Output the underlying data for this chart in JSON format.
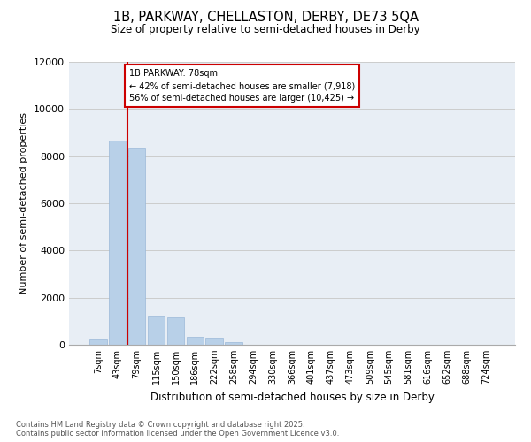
{
  "title_line1": "1B, PARKWAY, CHELLASTON, DERBY, DE73 5QA",
  "title_line2": "Size of property relative to semi-detached houses in Derby",
  "xlabel": "Distribution of semi-detached houses by size in Derby",
  "ylabel": "Number of semi-detached properties",
  "categories": [
    "7sqm",
    "43sqm",
    "79sqm",
    "115sqm",
    "150sqm",
    "186sqm",
    "222sqm",
    "258sqm",
    "294sqm",
    "330sqm",
    "366sqm",
    "401sqm",
    "437sqm",
    "473sqm",
    "509sqm",
    "545sqm",
    "581sqm",
    "616sqm",
    "652sqm",
    "688sqm",
    "724sqm"
  ],
  "values": [
    220,
    8650,
    8350,
    1200,
    1150,
    350,
    300,
    120,
    0,
    0,
    0,
    0,
    0,
    0,
    0,
    0,
    0,
    0,
    0,
    0,
    0
  ],
  "bar_color": "#b8d0e8",
  "bar_edge_color": "#9ab8d8",
  "grid_color": "#cccccc",
  "background_color": "#e8eef5",
  "annotation_title": "1B PARKWAY: 78sqm",
  "annotation_line2": "← 42% of semi-detached houses are smaller (7,918)",
  "annotation_line3": "56% of semi-detached houses are larger (10,425) →",
  "annotation_box_color": "#cc0000",
  "ylim": [
    0,
    12000
  ],
  "yticks": [
    0,
    2000,
    4000,
    6000,
    8000,
    10000,
    12000
  ],
  "footer_line1": "Contains HM Land Registry data © Crown copyright and database right 2025.",
  "footer_line2": "Contains public sector information licensed under the Open Government Licence v3.0."
}
